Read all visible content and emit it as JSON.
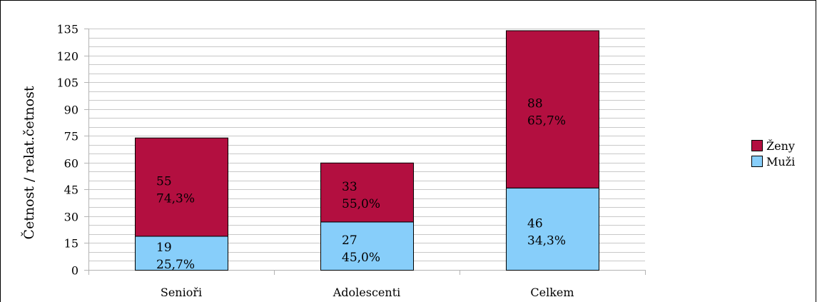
{
  "chart_data": {
    "type": "bar",
    "stacked": true,
    "title": "",
    "xlabel": "",
    "ylabel": "Četnost / relat.četnost",
    "categories": [
      "Senioři",
      "Adolescenti",
      "Celkem"
    ],
    "ylim": [
      0,
      135
    ],
    "yticks": [
      0,
      15,
      30,
      45,
      60,
      75,
      90,
      105,
      120,
      135
    ],
    "grid": true,
    "legend_position": "right",
    "series": [
      {
        "name": "Muži",
        "color": "#87cefa",
        "values": [
          19,
          27,
          46
        ],
        "percent_labels": [
          "25,7%",
          "45,0%",
          "34,3%"
        ]
      },
      {
        "name": "Ženy",
        "color": "#b30f40",
        "values": [
          55,
          33,
          88
        ],
        "percent_labels": [
          "74,3%",
          "55,0%",
          "65,7%"
        ]
      }
    ]
  }
}
